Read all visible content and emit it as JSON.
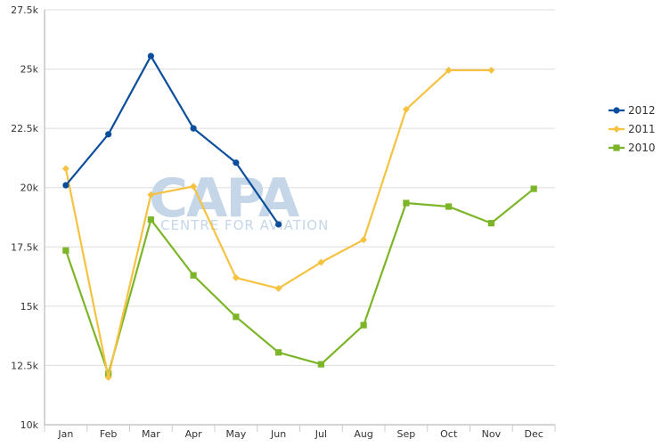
{
  "watermark": {
    "logo": "CAPA",
    "tagline": "CENTRE FOR AVIATION"
  },
  "chart_data": {
    "type": "line",
    "categories": [
      "Jan",
      "Feb",
      "Mar",
      "Apr",
      "May",
      "Jun",
      "Jul",
      "Aug",
      "Sep",
      "Oct",
      "Nov",
      "Dec"
    ],
    "y_ticks": [
      "10k",
      "12.5k",
      "15k",
      "17.5k",
      "20k",
      "22.5k",
      "25k",
      "27.5k"
    ],
    "ylim": [
      10000,
      27500
    ],
    "y_step": 2500,
    "grid": true,
    "legend_position": "right",
    "series": [
      {
        "name": "2012",
        "color": "#0b4f9c",
        "marker": "circle",
        "values": [
          20100,
          22250,
          25550,
          22500,
          21050,
          18450,
          null,
          null,
          null,
          null,
          null,
          null
        ]
      },
      {
        "name": "2011",
        "color": "#f5c242",
        "marker": "diamond",
        "values": [
          20800,
          12000,
          19700,
          20050,
          16200,
          15750,
          16850,
          17800,
          23300,
          24950,
          24950,
          null
        ]
      },
      {
        "name": "2010",
        "color": "#7cb528",
        "marker": "square",
        "values": [
          17350,
          12150,
          18650,
          16300,
          14550,
          13050,
          12550,
          14200,
          19350,
          19200,
          18500,
          19950
        ]
      }
    ]
  }
}
